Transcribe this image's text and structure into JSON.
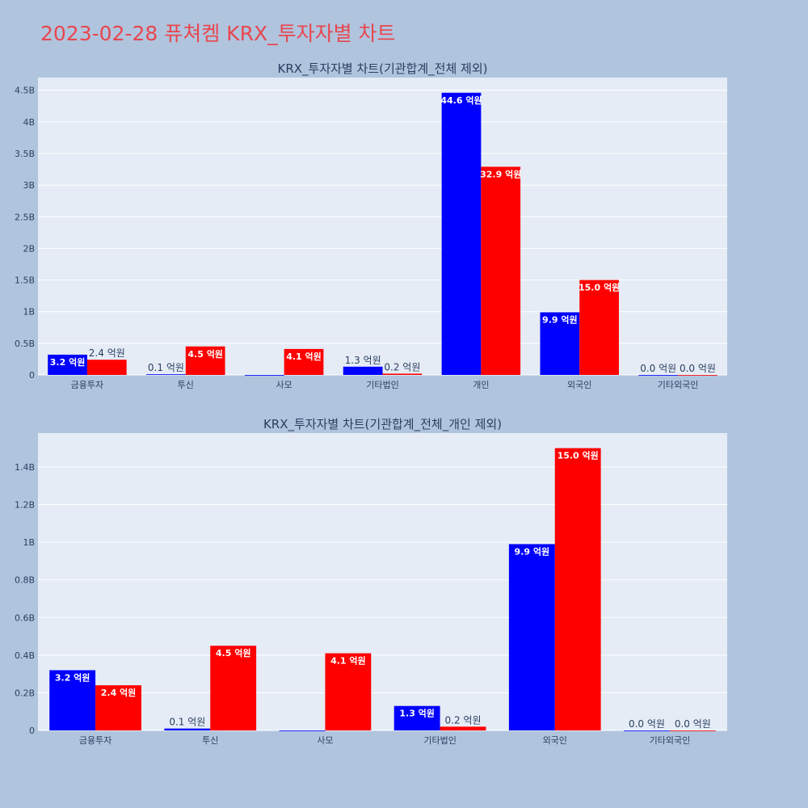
{
  "page": {
    "title": "2023-02-28 퓨쳐켐 KRX_투자자별 차트"
  },
  "colors": {
    "buy": "#0000ff",
    "sell": "#ff0000"
  },
  "chart_data": [
    {
      "type": "bar",
      "title": "KRX_투자자별 차트(기관합계_전체 제외)",
      "categories": [
        "금융투자",
        "투신",
        "사모",
        "기타법인",
        "개인",
        "외국인",
        "기타외국인"
      ],
      "series": [
        {
          "values": [
            320000000,
            10000000,
            0,
            130000000,
            4460000000,
            990000000,
            0
          ],
          "labels": [
            "3.2 억원",
            "0.1 억원",
            "",
            "1.3 억원",
            "44.6 억원",
            "9.9 억원",
            "0.0 억원"
          ]
        },
        {
          "values": [
            240000000,
            450000000,
            410000000,
            20000000,
            3290000000,
            1500000000,
            0
          ],
          "labels": [
            "2.4 억원",
            "4.5 억원",
            "4.1 억원",
            "0.2 억원",
            "32.9 억원",
            "15.0 억원",
            "0.0 억원"
          ]
        }
      ],
      "ylim": [
        0,
        4700000000
      ],
      "yticks": [
        0,
        500000000,
        1000000000,
        1500000000,
        2000000000,
        2500000000,
        3000000000,
        3500000000,
        4000000000,
        4500000000
      ],
      "ytick_labels": [
        "0",
        "0.5B",
        "1B",
        "1.5B",
        "2B",
        "2.5B",
        "3B",
        "3.5B",
        "4B",
        "4.5B"
      ],
      "grid": true
    },
    {
      "type": "bar",
      "title": "KRX_투자자별 차트(기관합계_전체_개인 제외)",
      "categories": [
        "금융투자",
        "투신",
        "사모",
        "기타법인",
        "외국인",
        "기타외국인"
      ],
      "series": [
        {
          "values": [
            320000000,
            10000000,
            0,
            130000000,
            990000000,
            0
          ],
          "labels": [
            "3.2 억원",
            "0.1 억원",
            "",
            "1.3 억원",
            "9.9 억원",
            "0.0 억원"
          ]
        },
        {
          "values": [
            240000000,
            450000000,
            410000000,
            20000000,
            1500000000,
            0
          ],
          "labels": [
            "2.4 억원",
            "4.5 억원",
            "4.1 억원",
            "0.2 억원",
            "15.0 억원",
            "0.0 억원"
          ]
        }
      ],
      "ylim": [
        0,
        1580000000
      ],
      "yticks": [
        0,
        200000000,
        400000000,
        600000000,
        800000000,
        1000000000,
        1200000000,
        1400000000
      ],
      "ytick_labels": [
        "0",
        "0.2B",
        "0.4B",
        "0.6B",
        "0.8B",
        "1B",
        "1.2B",
        "1.4B"
      ],
      "grid": true
    }
  ]
}
